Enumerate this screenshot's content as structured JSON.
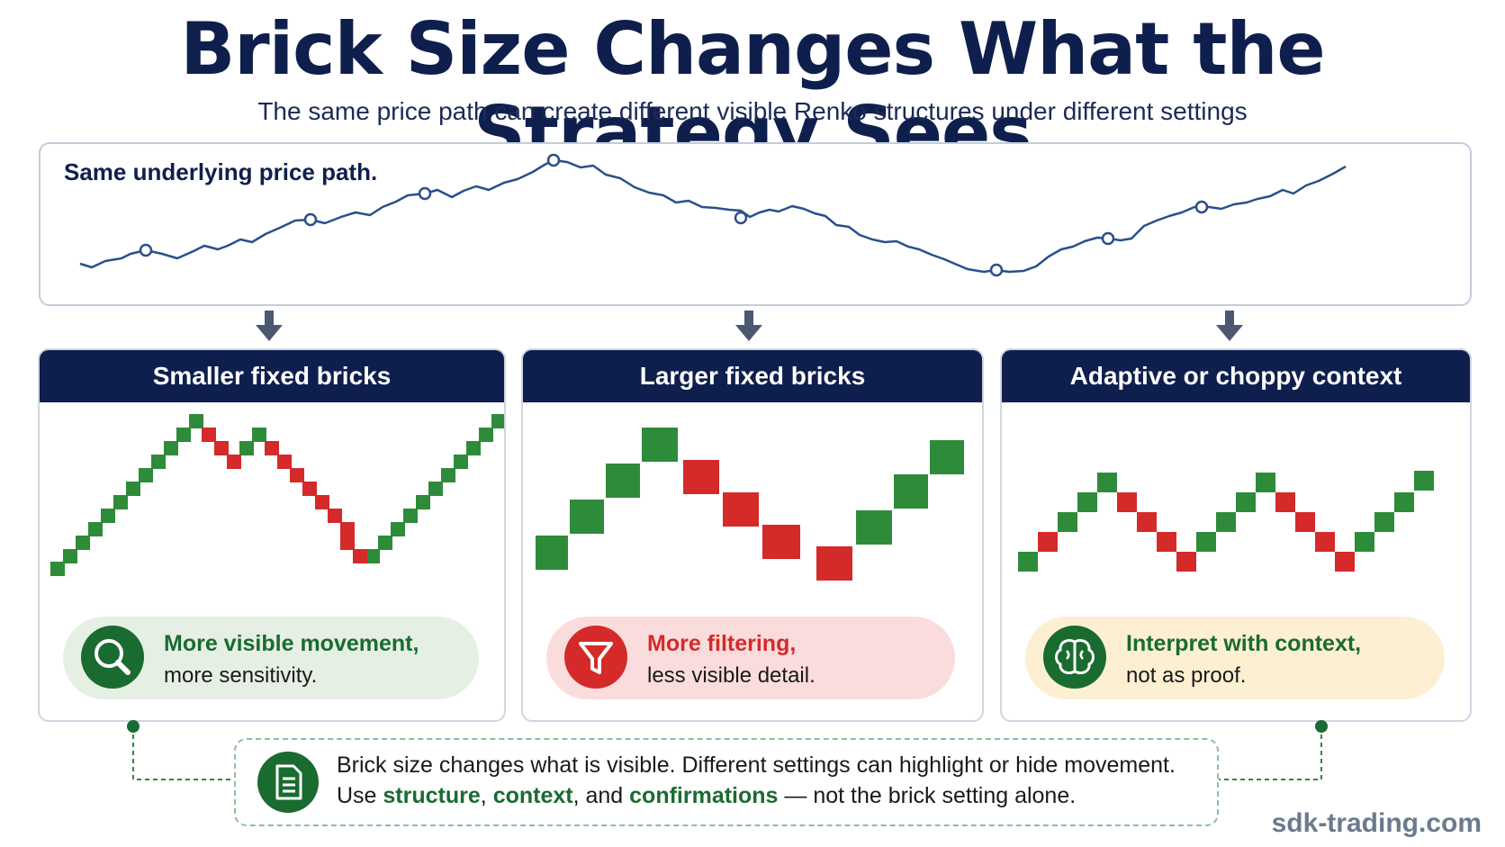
{
  "title": "Brick Size Changes What the Strategy Sees",
  "subtitle": "The same price path can create different visible Renko structures under different settings",
  "path_panel": {
    "label": "Same underlying price path."
  },
  "cards": [
    {
      "heading": "Smaller fixed bricks",
      "note_bold": "More visible movement,",
      "note_text": "more sensitivity.",
      "icon": "magnifier-icon",
      "bg": "#e6efe4",
      "accent": "#1a6b30"
    },
    {
      "heading": "Larger fixed bricks",
      "note_bold": "More filtering,",
      "note_text": "less visible detail.",
      "icon": "funnel-icon",
      "bg": "#fbdcdc",
      "accent": "#d42a2a"
    },
    {
      "heading": "Adaptive or choppy context",
      "note_bold": "Interpret with context,",
      "note_text": "not as proof.",
      "icon": "brain-icon",
      "bg": "#fcefd2",
      "accent": "#1a6b30"
    }
  ],
  "summary": {
    "line1": "Brick size changes what is visible. Different settings can highlight or hide movement.",
    "line2_prefix": "Use ",
    "w1": "structure",
    "sep1": ", ",
    "w2": "context",
    "sep2": ", and ",
    "w3": "confirmations",
    "line2_suffix": " — not the brick setting alone.",
    "icon": "document-icon"
  },
  "watermark": "sdk-trading.com",
  "colors": {
    "navy": "#0f1f4d",
    "line": "#2b4f8a",
    "up": "#2e8b3a",
    "down": "#d42a2a"
  }
}
